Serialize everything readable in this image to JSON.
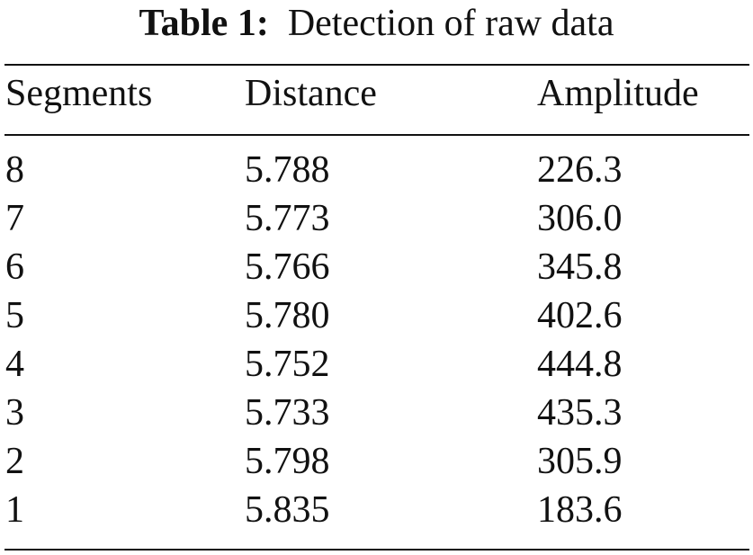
{
  "table": {
    "caption_label": "Table 1:",
    "caption_text": "Detection of raw data",
    "headers": [
      "Segments",
      "Distance",
      "Amplitude"
    ],
    "rows": [
      [
        "8",
        "5.788",
        "226.3"
      ],
      [
        "7",
        "5.773",
        "306.0"
      ],
      [
        "6",
        "5.766",
        "345.8"
      ],
      [
        "5",
        "5.780",
        "402.6"
      ],
      [
        "4",
        "5.752",
        "444.8"
      ],
      [
        "3",
        "5.733",
        "435.3"
      ],
      [
        "2",
        "5.798",
        "305.9"
      ],
      [
        "1",
        "5.835",
        "183.6"
      ]
    ]
  }
}
